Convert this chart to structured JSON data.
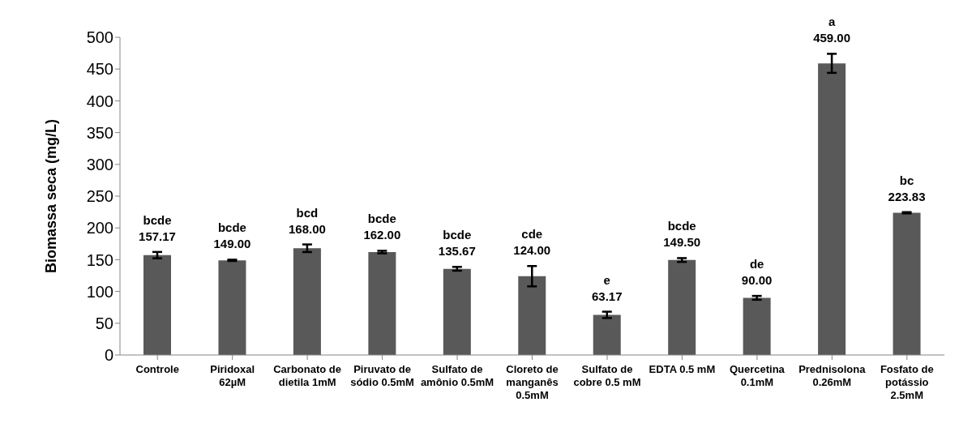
{
  "chart_data": {
    "type": "bar",
    "ylabel": "Biomassa seca (mg/L)",
    "categories": [
      "Controle",
      "Piridoxal 62µM",
      "Carbonato de dietila 1mM",
      "Piruvato de sódio 0.5mM",
      "Sulfato de amônio 0.5mM",
      "Cloreto de manganês 0.5mM",
      "Sulfato de cobre 0.5 mM",
      "EDTA 0.5 mM",
      "Quercetina 0.1mM",
      "Prednisolona 0.26mM",
      "Fosfato de potássio 2.5mM"
    ],
    "values": [
      157.17,
      149.0,
      168.0,
      162.0,
      135.67,
      124.0,
      63.17,
      149.5,
      90.0,
      459.0,
      223.83
    ],
    "value_labels": [
      "157.17",
      "149.00",
      "168.00",
      "162.00",
      "135.67",
      "124.00",
      "63.17",
      "149.50",
      "90.00",
      "459.00",
      "223.83"
    ],
    "errors": [
      5,
      1,
      6,
      2,
      3,
      16,
      5,
      3,
      3,
      15,
      1
    ],
    "color": "#595959",
    "ylim": [
      0,
      500
    ],
    "yticks": [
      0,
      50,
      100,
      150,
      200,
      250,
      300,
      350,
      400,
      450,
      500
    ],
    "annotations": [
      {
        "text": "bcde",
        "x": "Controle",
        "y": 157.17
      },
      {
        "text": "bcde",
        "x": "Piridoxal 62µM",
        "y": 149.0
      },
      {
        "text": "bcd",
        "x": "Carbonato de dietila 1mM",
        "y": 168.0
      },
      {
        "text": "bcde",
        "x": "Piruvato de sódio 0.5mM",
        "y": 162.0
      },
      {
        "text": "bcde",
        "x": "Sulfato de amônio 0.5mM",
        "y": 135.67
      },
      {
        "text": "cde",
        "x": "Cloreto de manganês 0.5mM",
        "y": 124.0
      },
      {
        "text": "e",
        "x": "Sulfato de cobre 0.5 mM",
        "y": 63.17
      },
      {
        "text": "bcde",
        "x": "EDTA 0.5 mM",
        "y": 149.5
      },
      {
        "text": "de",
        "x": "Quercetina 0.1mM",
        "y": 90.0
      },
      {
        "text": "a",
        "x": "Prednisolona 0.26mM",
        "y": 459.0
      },
      {
        "text": "bc",
        "x": "Fosfato de potássio 2.5mM",
        "y": 223.83
      }
    ]
  }
}
